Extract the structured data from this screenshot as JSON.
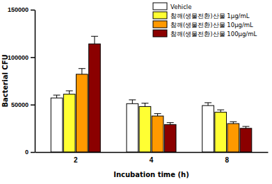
{
  "chart_data": {
    "type": "bar",
    "x_label": "Incubation time (h)",
    "y_label": "Bacterial CFU",
    "categories": [
      "2",
      "4",
      "8"
    ],
    "series": [
      {
        "name": "Vehicle",
        "color": "#ffffff",
        "values": [
          57000,
          51000,
          49000
        ],
        "errors": [
          3000,
          4000,
          3000
        ]
      },
      {
        "name": "참깨(생물전환)산물 1μg/mL",
        "color": "#ffff33",
        "values": [
          61000,
          48000,
          42000
        ],
        "errors": [
          3500,
          3500,
          2500
        ]
      },
      {
        "name": "참깨(생물전환)산물 10μg/mL",
        "color": "#ff9900",
        "values": [
          82000,
          38000,
          30000
        ],
        "errors": [
          6000,
          2500,
          2000
        ]
      },
      {
        "name": "참깨(생물전환)산물 100μg/mL",
        "color": "#8b0000",
        "values": [
          114000,
          29000,
          25000
        ],
        "errors": [
          8000,
          2000,
          2000
        ]
      }
    ],
    "ylim": [
      0,
      150000
    ],
    "yticks": [
      0,
      50000,
      100000,
      150000
    ],
    "legend": "upper right"
  }
}
